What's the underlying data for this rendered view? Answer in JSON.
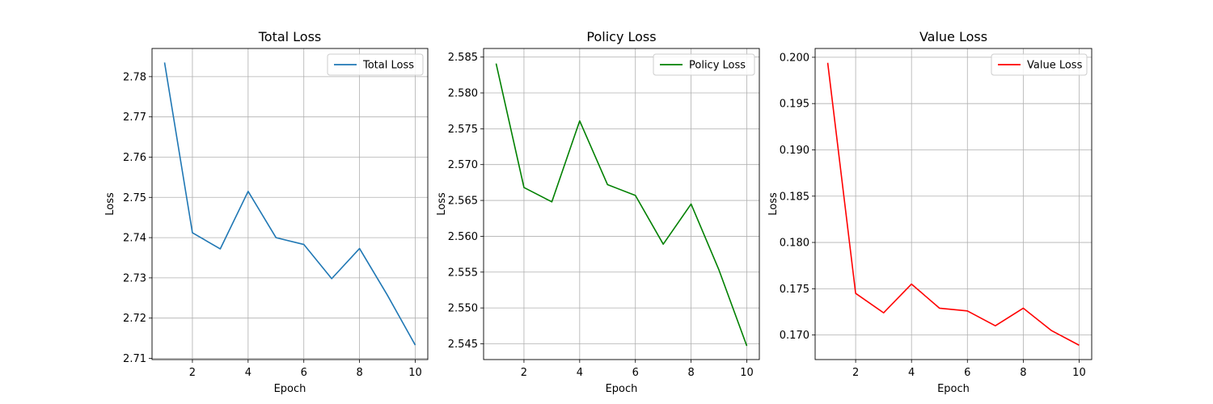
{
  "chart_data": [
    {
      "type": "line",
      "title": "Total Loss",
      "xlabel": "Epoch",
      "ylabel": "Loss",
      "x": [
        1,
        2,
        3,
        4,
        5,
        6,
        7,
        8,
        9,
        10
      ],
      "xticks": [
        2,
        4,
        6,
        8,
        10
      ],
      "xlim": [
        0.55,
        10.45
      ],
      "yticks": [
        2.71,
        2.72,
        2.73,
        2.74,
        2.75,
        2.76,
        2.77,
        2.78
      ],
      "ytick_labels": [
        "2.71",
        "2.72",
        "2.73",
        "2.74",
        "2.75",
        "2.76",
        "2.77",
        "2.78"
      ],
      "ylim": [
        2.7097,
        2.787
      ],
      "grid": true,
      "legend_position": "upper-right",
      "series": [
        {
          "name": "Total Loss",
          "color": "#1f77b4",
          "values": [
            2.7835,
            2.7412,
            2.7372,
            2.7515,
            2.74,
            2.7383,
            2.7298,
            2.7373,
            2.7257,
            2.7133
          ]
        }
      ]
    },
    {
      "type": "line",
      "title": "Policy Loss",
      "xlabel": "Epoch",
      "ylabel": "Loss",
      "x": [
        1,
        2,
        3,
        4,
        5,
        6,
        7,
        8,
        9,
        10
      ],
      "xticks": [
        2,
        4,
        6,
        8,
        10
      ],
      "xlim": [
        0.55,
        10.45
      ],
      "yticks": [
        2.545,
        2.55,
        2.555,
        2.56,
        2.565,
        2.57,
        2.575,
        2.58,
        2.585
      ],
      "ytick_labels": [
        "2.545",
        "2.550",
        "2.555",
        "2.560",
        "2.565",
        "2.570",
        "2.575",
        "2.580",
        "2.585"
      ],
      "ylim": [
        2.5428,
        2.5862
      ],
      "grid": true,
      "legend_position": "upper-right",
      "series": [
        {
          "name": "Policy Loss",
          "color": "#008000",
          "values": [
            2.5841,
            2.5668,
            2.5648,
            2.5761,
            2.5672,
            2.5657,
            2.5589,
            2.5645,
            2.5553,
            2.5447
          ]
        }
      ]
    },
    {
      "type": "line",
      "title": "Value Loss",
      "xlabel": "Epoch",
      "ylabel": "Loss",
      "x": [
        1,
        2,
        3,
        4,
        5,
        6,
        7,
        8,
        9,
        10
      ],
      "xticks": [
        2,
        4,
        6,
        8,
        10
      ],
      "xlim": [
        0.55,
        10.45
      ],
      "yticks": [
        0.17,
        0.175,
        0.18,
        0.185,
        0.19,
        0.195,
        0.2
      ],
      "ytick_labels": [
        "0.170",
        "0.175",
        "0.180",
        "0.185",
        "0.190",
        "0.195",
        "0.200"
      ],
      "ylim": [
        0.16735,
        0.20095
      ],
      "grid": true,
      "legend_position": "upper-right",
      "series": [
        {
          "name": "Value Loss",
          "color": "#ff0000",
          "values": [
            0.1994,
            0.1745,
            0.1724,
            0.1755,
            0.1729,
            0.1726,
            0.171,
            0.1729,
            0.1705,
            0.1689
          ]
        }
      ]
    }
  ]
}
